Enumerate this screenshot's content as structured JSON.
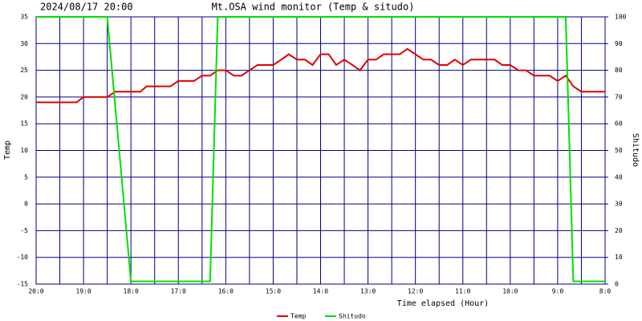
{
  "chart_data": {
    "type": "line",
    "timestamp": "2024/08/17 20:00",
    "title": "Mt.OSA wind monitor (Temp & situdo)",
    "x_label": "Time elapsed (Hour)",
    "y_label": "Temp",
    "y2_label": "Shitudo",
    "xlim": [
      0,
      12
    ],
    "xticks": [
      {
        "value": 0,
        "label": "20:0"
      },
      {
        "value": 1,
        "label": "19:0"
      },
      {
        "value": 2,
        "label": "18:0"
      },
      {
        "value": 3,
        "label": "17:0"
      },
      {
        "value": 4,
        "label": "16:0"
      },
      {
        "value": 5,
        "label": "15:0"
      },
      {
        "value": 6,
        "label": "14:0"
      },
      {
        "value": 7,
        "label": "13:0"
      },
      {
        "value": 8,
        "label": "12:0"
      },
      {
        "value": 9,
        "label": "11:0"
      },
      {
        "value": 10,
        "label": "10:0"
      },
      {
        "value": 11,
        "label": "9:0"
      },
      {
        "value": 12,
        "label": "8:0"
      }
    ],
    "ylim": [
      -15,
      35
    ],
    "yticks": [
      -15,
      -10,
      -5,
      0,
      5,
      10,
      15,
      20,
      25,
      30,
      35
    ],
    "y2lim": [
      0,
      100
    ],
    "y2ticks": [
      0,
      10,
      20,
      30,
      40,
      50,
      60,
      70,
      80,
      90,
      100
    ],
    "grid": true,
    "minor_grid": true,
    "grid_color": "#000080",
    "legend": "bottom",
    "series": [
      {
        "name": "Temp",
        "color": "#e00000",
        "x": [
          0,
          0.85,
          1,
          1.5,
          1.67,
          2.2,
          2.33,
          2.83,
          3,
          3.33,
          3.5,
          3.67,
          3.83,
          4,
          4.17,
          4.33,
          4.5,
          4.67,
          5,
          5.17,
          5.33,
          5.5,
          5.67,
          5.83,
          6,
          6.17,
          6.33,
          6.5,
          6.67,
          6.83,
          7,
          7.17,
          7.33,
          7.67,
          7.83,
          8,
          8.17,
          8.33,
          8.5,
          8.67,
          8.83,
          9,
          9.17,
          9.67,
          9.83,
          10,
          10.17,
          10.33,
          10.5,
          10.83,
          11,
          11.17,
          11.33,
          11.5,
          12
        ],
        "values": [
          19,
          19,
          20,
          20,
          21,
          21,
          22,
          22,
          23,
          23,
          24,
          24,
          25,
          25,
          24,
          24,
          25,
          26,
          26,
          27,
          28,
          27,
          27,
          26,
          28,
          28,
          26,
          27,
          26,
          25,
          27,
          27,
          28,
          28,
          29,
          28,
          27,
          27,
          26,
          26,
          27,
          26,
          27,
          27,
          26,
          26,
          25,
          25,
          24,
          24,
          23,
          24,
          22,
          21,
          21
        ]
      },
      {
        "name": "Shitudo",
        "color": "#00e000",
        "axis": "y2",
        "x": [
          0,
          1.5,
          2,
          3.67,
          3.83,
          11.17,
          11.33,
          12
        ],
        "values": [
          100,
          100,
          1,
          1,
          100,
          100,
          1,
          1
        ]
      }
    ]
  }
}
